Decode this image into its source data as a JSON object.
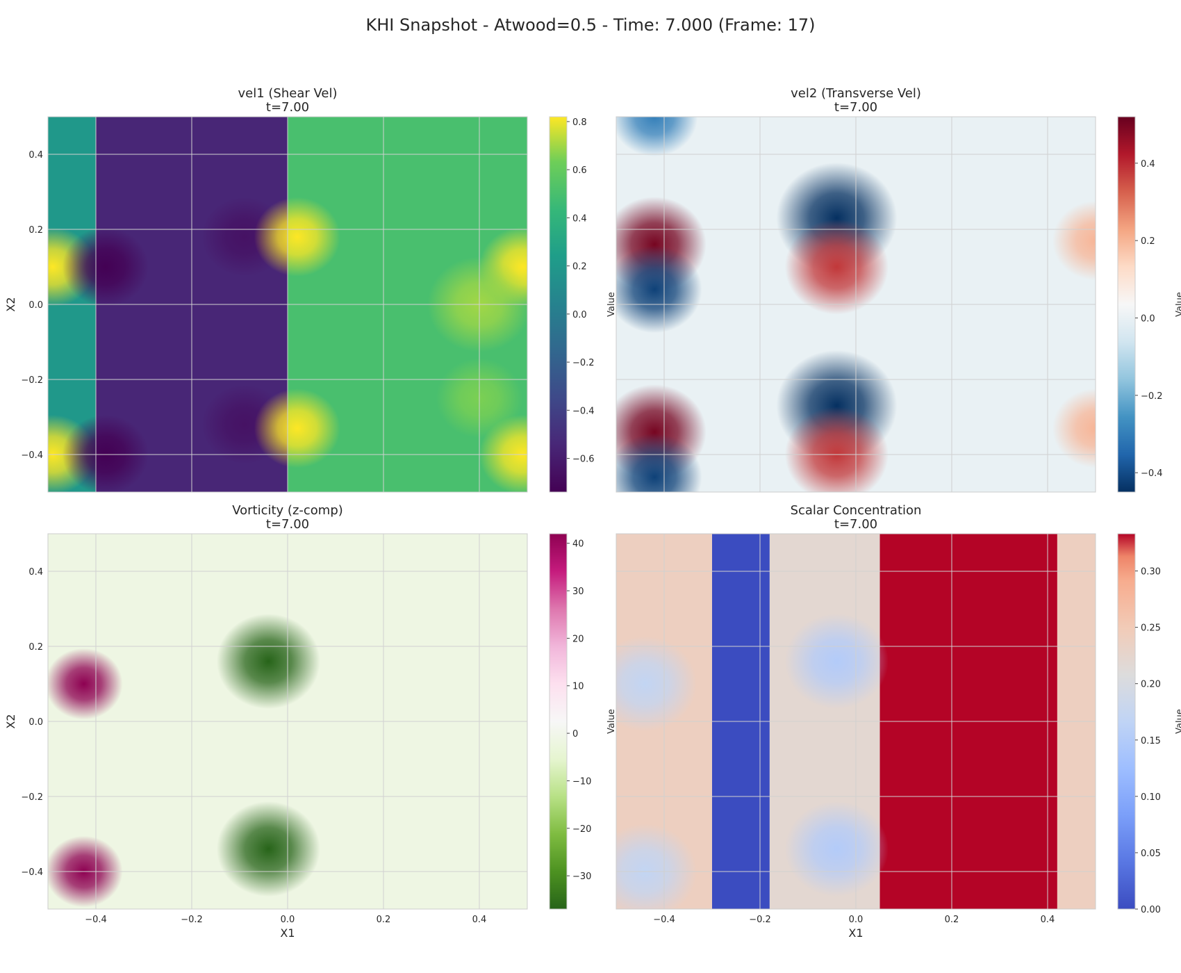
{
  "suptitle": "KHI Snapshot - Atwood=0.5 - Time: 7.000 (Frame: 17)",
  "chart_data": [
    {
      "type": "heatmap",
      "title": "vel1 (Shear Vel)",
      "subtitle": "t=7.00",
      "xlabel": "",
      "ylabel": "X2",
      "xlim": [
        -0.5,
        0.5
      ],
      "ylim": [
        -0.5,
        0.5
      ],
      "xticks": [
        -0.4,
        -0.2,
        0.0,
        0.2,
        0.4
      ],
      "xtick_labels_shown": false,
      "yticks": [
        -0.4,
        -0.2,
        0.0,
        0.2,
        0.4
      ],
      "ytick_labels": [
        "−0.4",
        "−0.2",
        "0.0",
        "0.2",
        "0.4"
      ],
      "grid": true,
      "colormap": "viridis",
      "colorbar": {
        "label": "Value",
        "range": [
          -0.74,
          0.82
        ],
        "ticks": [
          -0.6,
          -0.4,
          -0.2,
          0.0,
          0.2,
          0.4,
          0.6,
          0.8
        ],
        "tick_labels": [
          "−0.6",
          "−0.4",
          "−0.2",
          "0.0",
          "0.2",
          "0.4",
          "0.6",
          "0.8"
        ]
      },
      "features": [
        {
          "kind": "band",
          "x_from": -0.5,
          "x_to": -0.4,
          "value": 0.2
        },
        {
          "kind": "band",
          "x_from": -0.4,
          "x_to": 0.0,
          "value": -0.55
        },
        {
          "kind": "band",
          "x_from": 0.0,
          "x_to": 0.5,
          "value": 0.5
        },
        {
          "kind": "blob",
          "x": -0.49,
          "y": 0.1,
          "r": 0.05,
          "value": 0.82
        },
        {
          "kind": "blob",
          "x": -0.49,
          "y": -0.4,
          "r": 0.05,
          "value": 0.82
        },
        {
          "kind": "blob",
          "x": 0.49,
          "y": 0.1,
          "r": 0.05,
          "value": 0.82
        },
        {
          "kind": "blob",
          "x": 0.49,
          "y": -0.4,
          "r": 0.05,
          "value": 0.82
        },
        {
          "kind": "blob",
          "x": -0.38,
          "y": 0.1,
          "r": 0.05,
          "value": -0.74
        },
        {
          "kind": "blob",
          "x": -0.38,
          "y": -0.4,
          "r": 0.05,
          "value": -0.74
        },
        {
          "kind": "blob",
          "x": -0.09,
          "y": 0.18,
          "r": 0.05,
          "value": -0.65
        },
        {
          "kind": "blob",
          "x": -0.09,
          "y": -0.32,
          "r": 0.05,
          "value": -0.65
        },
        {
          "kind": "blob",
          "x": 0.02,
          "y": 0.18,
          "r": 0.05,
          "value": 0.82
        },
        {
          "kind": "blob",
          "x": 0.02,
          "y": -0.33,
          "r": 0.05,
          "value": 0.82
        },
        {
          "kind": "blob",
          "x": 0.4,
          "y": 0.0,
          "r": 0.06,
          "value": 0.7
        },
        {
          "kind": "blob",
          "x": 0.4,
          "y": -0.25,
          "r": 0.05,
          "value": 0.65
        }
      ]
    },
    {
      "type": "heatmap",
      "title": "vel2 (Transverse Vel)",
      "subtitle": "t=7.00",
      "xlabel": "",
      "ylabel": "",
      "xlim": [
        -0.5,
        0.5
      ],
      "ylim": [
        -0.5,
        0.5
      ],
      "xticks": [
        -0.4,
        -0.2,
        0.0,
        0.2,
        0.4
      ],
      "xtick_labels_shown": false,
      "yticks": [
        -0.4,
        -0.2,
        0.0,
        0.2,
        0.4
      ],
      "ytick_labels_shown": false,
      "grid": true,
      "colormap": "RdBu_r",
      "colorbar": {
        "label": "Value",
        "range": [
          -0.45,
          0.52
        ],
        "ticks": [
          -0.4,
          -0.2,
          0.0,
          0.2,
          0.4
        ],
        "tick_labels": [
          "−0.4",
          "−0.2",
          "0.0",
          "0.2",
          "0.4"
        ]
      },
      "features": [
        {
          "kind": "band",
          "x_from": -0.5,
          "x_to": 0.5,
          "value": 0.0
        },
        {
          "kind": "blob",
          "x": -0.42,
          "y": 0.16,
          "r": 0.06,
          "value": 0.5
        },
        {
          "kind": "blob",
          "x": -0.42,
          "y": 0.04,
          "r": 0.055,
          "value": -0.42
        },
        {
          "kind": "blob",
          "x": -0.42,
          "y": -0.34,
          "r": 0.06,
          "value": 0.5
        },
        {
          "kind": "blob",
          "x": -0.42,
          "y": -0.46,
          "r": 0.055,
          "value": -0.42
        },
        {
          "kind": "blob",
          "x": -0.42,
          "y": 0.5,
          "r": 0.05,
          "value": -0.3
        },
        {
          "kind": "blob",
          "x": -0.04,
          "y": 0.23,
          "r": 0.07,
          "value": -0.45
        },
        {
          "kind": "blob",
          "x": -0.04,
          "y": 0.1,
          "r": 0.06,
          "value": 0.38
        },
        {
          "kind": "blob",
          "x": -0.04,
          "y": -0.27,
          "r": 0.07,
          "value": -0.45
        },
        {
          "kind": "blob",
          "x": -0.04,
          "y": -0.4,
          "r": 0.06,
          "value": 0.38
        },
        {
          "kind": "blob",
          "x": 0.5,
          "y": 0.17,
          "r": 0.05,
          "value": 0.2
        },
        {
          "kind": "blob",
          "x": 0.5,
          "y": -0.33,
          "r": 0.05,
          "value": 0.2
        }
      ]
    },
    {
      "type": "heatmap",
      "title": "Vorticity (z-comp)",
      "subtitle": "t=7.00",
      "xlabel": "X1",
      "ylabel": "X2",
      "xlim": [
        -0.5,
        0.5
      ],
      "ylim": [
        -0.5,
        0.5
      ],
      "xticks": [
        -0.4,
        -0.2,
        0.0,
        0.2,
        0.4
      ],
      "xtick_labels": [
        "−0.4",
        "−0.2",
        "0.0",
        "0.2",
        "0.4"
      ],
      "yticks": [
        -0.4,
        -0.2,
        0.0,
        0.2,
        0.4
      ],
      "ytick_labels": [
        "−0.4",
        "−0.2",
        "0.0",
        "0.2",
        "0.4"
      ],
      "grid": true,
      "colormap": "PiYG_r",
      "colorbar": {
        "label": "Value",
        "range": [
          -37,
          42
        ],
        "ticks": [
          -30,
          -20,
          -10,
          0,
          10,
          20,
          30,
          40
        ],
        "tick_labels": [
          "−30",
          "−20",
          "−10",
          "0",
          "10",
          "20",
          "30",
          "40"
        ]
      },
      "features": [
        {
          "kind": "band",
          "x_from": -0.5,
          "x_to": 0.5,
          "value": -1.5
        },
        {
          "kind": "blob",
          "x": -0.425,
          "y": 0.1,
          "r": 0.045,
          "value": 42
        },
        {
          "kind": "blob",
          "x": -0.425,
          "y": -0.4,
          "r": 0.045,
          "value": 42
        },
        {
          "kind": "blob",
          "x": -0.04,
          "y": 0.16,
          "r": 0.06,
          "value": -37
        },
        {
          "kind": "blob",
          "x": -0.04,
          "y": -0.34,
          "r": 0.06,
          "value": -37
        }
      ]
    },
    {
      "type": "heatmap",
      "title": "Scalar Concentration",
      "subtitle": "t=7.00",
      "xlabel": "X1",
      "ylabel": "",
      "xlim": [
        -0.5,
        0.5
      ],
      "ylim": [
        -0.5,
        0.5
      ],
      "xticks": [
        -0.4,
        -0.2,
        0.0,
        0.2,
        0.4
      ],
      "xtick_labels": [
        "−0.4",
        "−0.2",
        "0.0",
        "0.2",
        "0.4"
      ],
      "yticks": [
        -0.4,
        -0.2,
        0.0,
        0.2,
        0.4
      ],
      "ytick_labels_shown": false,
      "grid": true,
      "colormap": "coolwarm",
      "colorbar": {
        "label": "Value",
        "range": [
          0.0,
          0.333
        ],
        "ticks": [
          0.0,
          0.05,
          0.1,
          0.15,
          0.2,
          0.25,
          0.3
        ],
        "tick_labels": [
          "0.00",
          "0.05",
          "0.10",
          "0.15",
          "0.20",
          "0.25",
          "0.30"
        ]
      },
      "features": [
        {
          "kind": "band",
          "x_from": -0.5,
          "x_to": -0.3,
          "value": 0.24
        },
        {
          "kind": "band",
          "x_from": -0.3,
          "x_to": -0.18,
          "value": 0.0
        },
        {
          "kind": "band",
          "x_from": -0.18,
          "x_to": 0.05,
          "value": 0.22
        },
        {
          "kind": "band",
          "x_from": 0.05,
          "x_to": 0.42,
          "value": 0.333
        },
        {
          "kind": "band",
          "x_from": 0.42,
          "x_to": 0.5,
          "value": 0.24
        },
        {
          "kind": "blob",
          "x": -0.44,
          "y": 0.1,
          "r": 0.06,
          "value": 0.17
        },
        {
          "kind": "blob",
          "x": -0.44,
          "y": -0.4,
          "r": 0.06,
          "value": 0.17
        },
        {
          "kind": "blob",
          "x": -0.04,
          "y": 0.16,
          "r": 0.06,
          "value": 0.15
        },
        {
          "kind": "blob",
          "x": -0.04,
          "y": -0.34,
          "r": 0.06,
          "value": 0.15
        }
      ]
    }
  ]
}
